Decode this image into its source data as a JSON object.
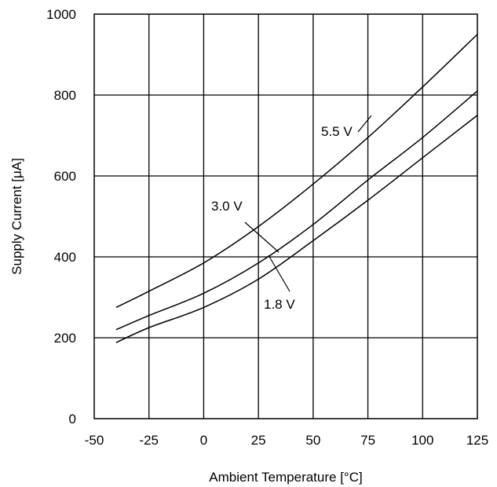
{
  "chart_data": {
    "type": "line",
    "title": "",
    "xlabel": "Ambient Temperature [°C]",
    "ylabel": "Supply Current [μA]",
    "xlim": [
      -50,
      125
    ],
    "ylim": [
      0,
      1000
    ],
    "xticks": [
      -50,
      -25,
      0,
      25,
      50,
      75,
      100,
      125
    ],
    "yticks": [
      0,
      200,
      400,
      600,
      800,
      1000
    ],
    "grid": true,
    "legend": "none (series labeled inline on curves)",
    "series": [
      {
        "name": "5.5 V",
        "x": [
          -40,
          -25,
          0,
          25,
          50,
          75,
          100,
          125
        ],
        "y": [
          275,
          315,
          385,
          475,
          580,
          695,
          820,
          950
        ]
      },
      {
        "name": "3.0 V",
        "x": [
          -40,
          -25,
          0,
          25,
          50,
          75,
          100,
          125
        ],
        "y": [
          220,
          255,
          310,
          385,
          480,
          590,
          695,
          810
        ]
      },
      {
        "name": "1.8 V",
        "x": [
          -40,
          -25,
          0,
          25,
          50,
          75,
          100,
          125
        ],
        "y": [
          188,
          225,
          275,
          345,
          440,
          540,
          645,
          750
        ]
      }
    ]
  }
}
